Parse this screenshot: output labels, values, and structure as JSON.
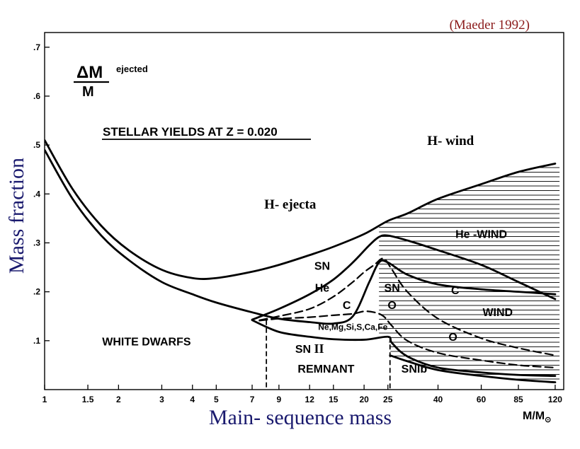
{
  "citation": "(Maeder 1992)",
  "colors": {
    "citation": "#8b1a1a",
    "axis_label": "#1a1a6e",
    "ink": "#000000"
  },
  "chart_data": {
    "type": "line",
    "title": "STELLAR YIELDS AT Z = 0.020",
    "formula": {
      "numerator": "ΔM",
      "superscript": "ejected",
      "denominator": "M"
    },
    "xlabel": "Main- sequence mass",
    "xunit": {
      "text": "M/M",
      "subscript": "⊙"
    },
    "ylabel": "Mass fraction",
    "xscale": "log",
    "xlim": [
      1,
      130
    ],
    "ylim": [
      0,
      0.73
    ],
    "xticks": [
      {
        "v": 1,
        "label": "1"
      },
      {
        "v": 1.5,
        "label": "1.5"
      },
      {
        "v": 2,
        "label": "2"
      },
      {
        "v": 3,
        "label": "3"
      },
      {
        "v": 4,
        "label": "4"
      },
      {
        "v": 5,
        "label": "5"
      },
      {
        "v": 7,
        "label": "7"
      },
      {
        "v": 9,
        "label": "9"
      },
      {
        "v": 12,
        "label": "12"
      },
      {
        "v": 15,
        "label": "15"
      },
      {
        "v": 20,
        "label": "20"
      },
      {
        "v": 25,
        "label": "25"
      },
      {
        "v": 40,
        "label": "40"
      },
      {
        "v": 60,
        "label": "60"
      },
      {
        "v": 85,
        "label": "85"
      },
      {
        "v": 120,
        "label": "120"
      }
    ],
    "yticks": [
      {
        "v": 0.1,
        "label": ".1"
      },
      {
        "v": 0.2,
        "label": ".2"
      },
      {
        "v": 0.3,
        "label": ".3"
      },
      {
        "v": 0.4,
        "label": ".4"
      },
      {
        "v": 0.5,
        "label": ".5"
      },
      {
        "v": 0.6,
        "label": ".6"
      },
      {
        "v": 0.7,
        "label": ".7"
      }
    ],
    "grid": false,
    "curves": [
      {
        "id": "h-boundary",
        "style": "solid",
        "x": [
          1,
          1.3,
          1.7,
          2.2,
          3,
          4,
          5,
          7,
          9,
          12,
          15,
          20,
          25,
          30,
          40,
          60,
          85,
          120
        ],
        "y": [
          0.51,
          0.41,
          0.335,
          0.285,
          0.245,
          0.228,
          0.228,
          0.241,
          0.255,
          0.275,
          0.292,
          0.318,
          0.345,
          0.36,
          0.39,
          0.42,
          0.445,
          0.462
        ]
      },
      {
        "id": "he-boundary",
        "style": "solid",
        "x": [
          1,
          1.3,
          1.7,
          2.2,
          3,
          4,
          5,
          7,
          9,
          12,
          15,
          18,
          21,
          23,
          25,
          30,
          40,
          60,
          85,
          120
        ],
        "y": [
          0.49,
          0.39,
          0.315,
          0.265,
          0.22,
          0.195,
          0.178,
          0.158,
          0.145,
          0.138,
          0.135,
          0.15,
          0.22,
          0.26,
          0.26,
          0.235,
          0.215,
          0.205,
          0.2,
          0.195
        ]
      },
      {
        "id": "wind-boundary",
        "style": "solid",
        "x": [
          7,
          9,
          12,
          15,
          18,
          21,
          23,
          25,
          30,
          40,
          60,
          85,
          120
        ],
        "y": [
          0.143,
          0.165,
          0.195,
          0.225,
          0.26,
          0.295,
          0.312,
          0.315,
          0.305,
          0.285,
          0.255,
          0.22,
          0.185
        ]
      },
      {
        "id": "c-boundary",
        "style": "dashed",
        "x": [
          7.5,
          9,
          12,
          15,
          18,
          20,
          22,
          24,
          26,
          30,
          40,
          60,
          85,
          120
        ],
        "y": [
          0.142,
          0.15,
          0.165,
          0.19,
          0.22,
          0.24,
          0.255,
          0.268,
          0.245,
          0.2,
          0.145,
          0.105,
          0.085,
          0.07
        ]
      },
      {
        "id": "o-boundary",
        "style": "dashed",
        "x": [
          7.5,
          9,
          12,
          15,
          18,
          20,
          22,
          24,
          26,
          30,
          40,
          60,
          85,
          120
        ],
        "y": [
          0.141,
          0.145,
          0.148,
          0.152,
          0.155,
          0.16,
          0.158,
          0.15,
          0.13,
          0.1,
          0.075,
          0.06,
          0.05,
          0.045
        ]
      },
      {
        "id": "remnant-boundary",
        "style": "solid",
        "x": [
          7,
          9,
          12,
          15,
          20,
          25,
          26,
          30,
          40,
          60,
          85,
          120
        ],
        "y": [
          0.142,
          0.118,
          0.108,
          0.103,
          0.102,
          0.108,
          0.095,
          0.068,
          0.045,
          0.035,
          0.03,
          0.028
        ]
      },
      {
        "id": "bottom-boundary",
        "style": "solid",
        "x": [
          25.5,
          30,
          40,
          60,
          85,
          120
        ],
        "y": [
          0.07,
          0.058,
          0.04,
          0.028,
          0.02,
          0.015
        ]
      }
    ],
    "vertical_lines": [
      {
        "x": 8,
        "y_from": 0,
        "y_to": 0.142,
        "style": "dashed"
      },
      {
        "x": 25.5,
        "y_from": 0,
        "y_to": 0.108,
        "style": "dashed"
      }
    ],
    "hatched_region": {
      "x_from": 23,
      "x_to": 125,
      "between": [
        "h-boundary",
        "bottom-boundary"
      ]
    },
    "annotations": [
      {
        "text": "H- wind",
        "x": 45,
        "y": 0.5,
        "font": "serif-bold"
      },
      {
        "text": "H- ejecta",
        "x": 10,
        "y": 0.37,
        "font": "serif-bold"
      },
      {
        "text": "He -WIND",
        "x": 60,
        "y": 0.31,
        "font": "sans-bold"
      },
      {
        "text": "SN",
        "x": 13.5,
        "y": 0.245,
        "font": "sans-bold"
      },
      {
        "text": "He",
        "x": 13.5,
        "y": 0.2,
        "font": "sans-bold"
      },
      {
        "text": "SN",
        "x": 26,
        "y": 0.2,
        "font": "sans-bold"
      },
      {
        "text": "O",
        "x": 26,
        "y": 0.165,
        "font": "sans-bold"
      },
      {
        "text": "C",
        "x": 17,
        "y": 0.165,
        "font": "sans-bold"
      },
      {
        "text": "C",
        "x": 47,
        "y": 0.195,
        "font": "sans-bold"
      },
      {
        "text": "WIND",
        "x": 70,
        "y": 0.15,
        "font": "sans-bold"
      },
      {
        "text": "O",
        "x": 46,
        "y": 0.1,
        "font": "sans-bold"
      },
      {
        "text": "Ne,Mg,Si,S,Ca,Fe",
        "x": 18,
        "y": 0.122,
        "font": "sans-bold-small"
      },
      {
        "text": "WHITE DWARFS",
        "x": 2.6,
        "y": 0.09,
        "font": "sans-bold"
      },
      {
        "text": "SN II",
        "x": 12,
        "y": 0.075,
        "font": "sans-bold"
      },
      {
        "text": "REMNANT",
        "x": 14,
        "y": 0.035,
        "font": "sans-bold"
      },
      {
        "text": "SNIb",
        "x": 32,
        "y": 0.035,
        "font": "sans-bold"
      }
    ]
  }
}
